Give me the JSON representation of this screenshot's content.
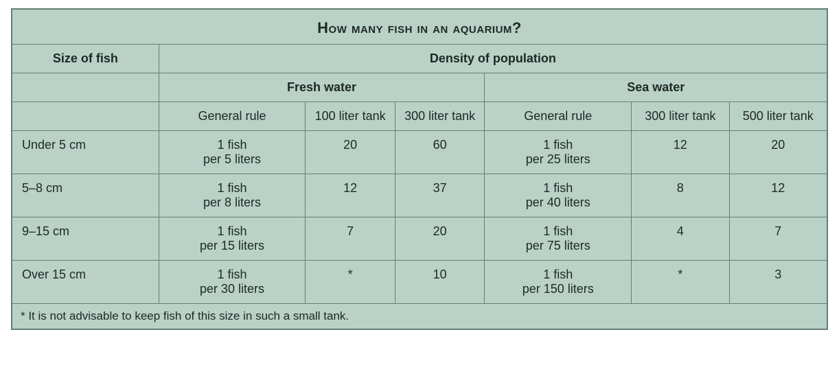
{
  "title": "How many fish in an aquarium?",
  "colors": {
    "background": "#bad1c7",
    "border": "#637e72",
    "text": "#1c2a24"
  },
  "typography": {
    "family": "Trebuchet MS, Lucida Sans, Verdana, sans-serif",
    "title_fontsize_pt": 16,
    "body_fontsize_pt": 13
  },
  "table": {
    "type": "table",
    "col_header_left": "Size of fish",
    "col_header_right": "Density of population",
    "water": {
      "fresh": {
        "label": "Fresh water",
        "subcols": [
          "General rule",
          "100 liter tank",
          "300 liter tank"
        ]
      },
      "sea": {
        "label": "Sea water",
        "subcols": [
          "General rule",
          "300 liter tank",
          "500 liter tank"
        ]
      }
    },
    "col_widths_pct": [
      18,
      18,
      11,
      11,
      18,
      12,
      12
    ],
    "rows": [
      {
        "size": "Under 5 cm",
        "fresh": {
          "rule1": "1 fish",
          "rule2": "per 5 liters",
          "a": "20",
          "b": "60"
        },
        "sea": {
          "rule1": "1 fish",
          "rule2": "per 25 liters",
          "a": "12",
          "b": "20"
        }
      },
      {
        "size": "5–8 cm",
        "fresh": {
          "rule1": "1 fish",
          "rule2": "per 8 liters",
          "a": "12",
          "b": "37"
        },
        "sea": {
          "rule1": "1 fish",
          "rule2": "per 40 liters",
          "a": "8",
          "b": "12"
        }
      },
      {
        "size": "9–15 cm",
        "fresh": {
          "rule1": "1 fish",
          "rule2": "per 15 liters",
          "a": "7",
          "b": "20"
        },
        "sea": {
          "rule1": "1 fish",
          "rule2": "per 75 liters",
          "a": "4",
          "b": "7"
        }
      },
      {
        "size": "Over 15 cm",
        "fresh": {
          "rule1": "1 fish",
          "rule2": "per 30 liters",
          "a": "*",
          "b": "10"
        },
        "sea": {
          "rule1": "1 fish",
          "rule2": "per 150 liters",
          "a": "*",
          "b": "3"
        }
      }
    ],
    "footnote": "* It is not advisable to keep fish of this size in such a small tank."
  }
}
